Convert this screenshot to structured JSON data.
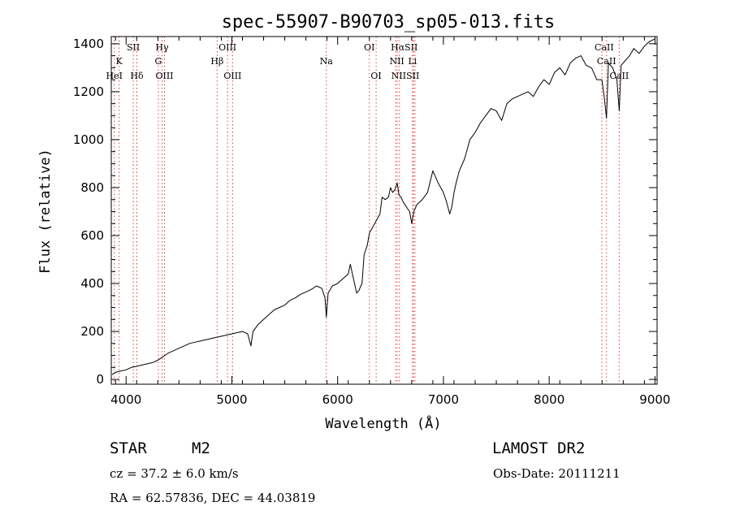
{
  "chart_data": {
    "type": "line",
    "title": "spec-55907-B90703_sp05-013.fits",
    "xlabel": "Wavelength (Å)",
    "ylabel": "Flux (relative)",
    "xlim": [
      3860,
      9020
    ],
    "ylim": [
      -20,
      1430
    ],
    "xticks": [
      4000,
      5000,
      6000,
      7000,
      8000,
      9000
    ],
    "yticks": [
      0,
      200,
      400,
      600,
      800,
      1000,
      1200,
      1400
    ],
    "grid": false,
    "series": [
      {
        "x": [
          3870,
          3900,
          3950,
          4000,
          4050,
          4100,
          4150,
          4200,
          4250,
          4300,
          4350,
          4400,
          4450,
          4500,
          4550,
          4600,
          4650,
          4700,
          4750,
          4800,
          4850,
          4900,
          4950,
          5000,
          5050,
          5100,
          5150,
          5180,
          5200,
          5250,
          5300,
          5350,
          5400,
          5450,
          5500,
          5550,
          5600,
          5650,
          5700,
          5750,
          5800,
          5850,
          5880,
          5893,
          5910,
          5950,
          6000,
          6050,
          6100,
          6120,
          6150,
          6180,
          6200,
          6230,
          6250,
          6280,
          6300,
          6350,
          6400,
          6420,
          6450,
          6480,
          6500,
          6520,
          6540,
          6563,
          6580,
          6600,
          6620,
          6650,
          6680,
          6700,
          6720,
          6750,
          6800,
          6850,
          6900,
          6950,
          7000,
          7030,
          7060,
          7080,
          7100,
          7120,
          7150,
          7200,
          7250,
          7300,
          7350,
          7400,
          7450,
          7500,
          7550,
          7600,
          7650,
          7700,
          7750,
          7800,
          7850,
          7900,
          7950,
          8000,
          8050,
          8100,
          8150,
          8200,
          8250,
          8300,
          8350,
          8400,
          8450,
          8498,
          8520,
          8542,
          8560,
          8600,
          8640,
          8662,
          8680,
          8720,
          8760,
          8800,
          8850,
          8900,
          8950,
          9000
        ],
        "y": [
          20,
          30,
          35,
          40,
          50,
          55,
          60,
          65,
          70,
          80,
          95,
          110,
          120,
          130,
          140,
          150,
          155,
          160,
          165,
          170,
          175,
          180,
          185,
          190,
          195,
          200,
          190,
          140,
          200,
          230,
          250,
          270,
          290,
          300,
          310,
          330,
          340,
          355,
          365,
          375,
          390,
          380,
          340,
          260,
          360,
          390,
          400,
          420,
          440,
          480,
          420,
          360,
          370,
          400,
          520,
          560,
          610,
          650,
          690,
          760,
          750,
          760,
          800,
          780,
          790,
          820,
          770,
          760,
          740,
          720,
          700,
          650,
          700,
          730,
          750,
          780,
          870,
          820,
          780,
          740,
          690,
          720,
          780,
          820,
          870,
          920,
          1000,
          1030,
          1070,
          1100,
          1130,
          1120,
          1080,
          1150,
          1170,
          1180,
          1190,
          1200,
          1180,
          1220,
          1250,
          1230,
          1280,
          1300,
          1270,
          1320,
          1340,
          1350,
          1310,
          1300,
          1250,
          1250,
          1180,
          1090,
          1320,
          1300,
          1250,
          1120,
          1310,
          1330,
          1350,
          1380,
          1360,
          1390,
          1410,
          1420
        ]
      }
    ],
    "line_labels": [
      {
        "text": "K",
        "x": 3934,
        "row": 2
      },
      {
        "text": "HeI",
        "x": 3889,
        "row": 3
      },
      {
        "text": "SII",
        "x": 4068,
        "row": 1
      },
      {
        "text": "Hδ",
        "x": 4102,
        "row": 3
      },
      {
        "text": "Hγ",
        "x": 4340,
        "row": 1
      },
      {
        "text": "G",
        "x": 4305,
        "row": 2
      },
      {
        "text": "OIII",
        "x": 4363,
        "row": 3
      },
      {
        "text": "OIII",
        "x": 4959,
        "row": 1
      },
      {
        "text": "Hβ",
        "x": 4861,
        "row": 2
      },
      {
        "text": "OIII",
        "x": 5007,
        "row": 3
      },
      {
        "text": "Na",
        "x": 5893,
        "row": 2
      },
      {
        "text": "OI",
        "x": 6300,
        "row": 1
      },
      {
        "text": "OI",
        "x": 6364,
        "row": 3
      },
      {
        "text": "HαSII",
        "x": 6630,
        "row": 1
      },
      {
        "text": "NII",
        "x": 6560,
        "row": 2
      },
      {
        "text": "Li",
        "x": 6708,
        "row": 2
      },
      {
        "text": "NIISII",
        "x": 6640,
        "row": 3
      },
      {
        "text": "CaII",
        "x": 8520,
        "row": 1
      },
      {
        "text": "CaII",
        "x": 8542,
        "row": 2
      },
      {
        "text": "CaII",
        "x": 8662,
        "row": 3
      }
    ],
    "line_markers": [
      3889,
      3934,
      4068,
      4102,
      4305,
      4340,
      4363,
      4861,
      4959,
      5007,
      5893,
      6300,
      6364,
      6548,
      6563,
      6584,
      6708,
      6717,
      6731,
      8498,
      8542,
      8662
    ]
  },
  "info": {
    "class_label": "STAR",
    "subclass": "M2",
    "survey": "LAMOST DR2",
    "cz": "cz = 37.2 ± 6.0 km/s",
    "obs_date": "Obs-Date: 20111211",
    "coords": "RA =  62.57836, DEC =  44.03819"
  },
  "colors": {
    "marker_lines": "#e0403c",
    "spectrum": "#000000",
    "axes": "#000000"
  }
}
